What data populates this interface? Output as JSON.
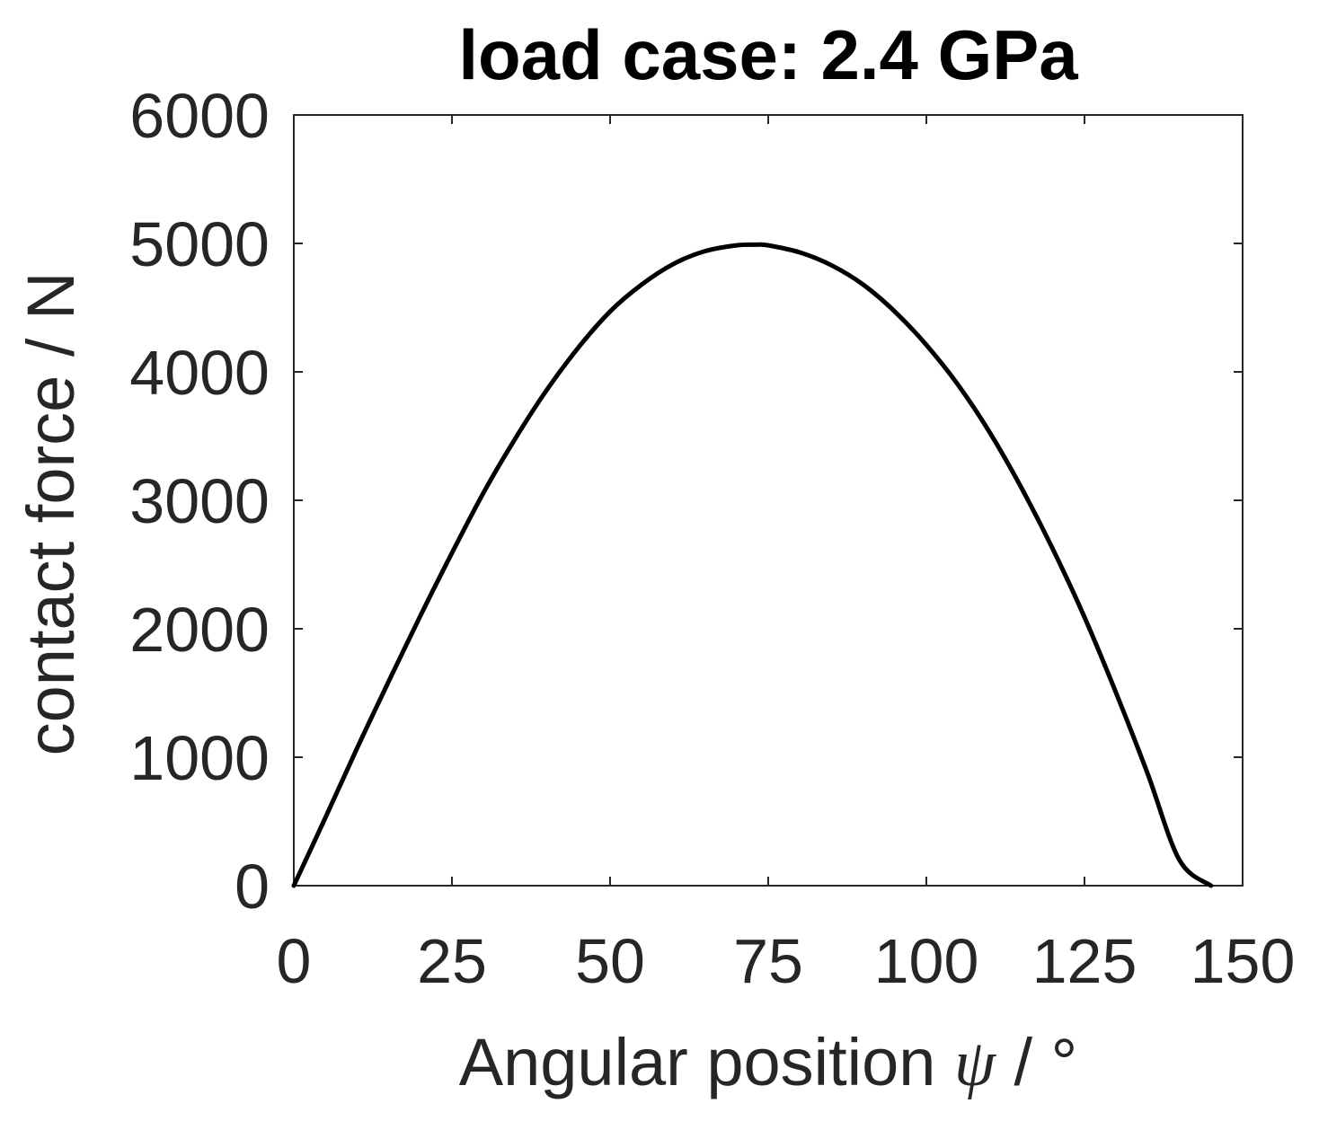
{
  "chart_data": {
    "type": "line",
    "title": "load case: 2.4 GPa",
    "xlabel_prefix": "Angular position ",
    "xlabel_symbol": "ψ",
    "xlabel_suffix": " / °",
    "ylabel": "contact force / N",
    "xlim": [
      0,
      150
    ],
    "ylim": [
      0,
      6000
    ],
    "xticks": [
      0,
      25,
      50,
      75,
      100,
      125,
      150
    ],
    "yticks": [
      0,
      1000,
      2000,
      3000,
      4000,
      5000,
      6000
    ],
    "grid": false,
    "legend": "none",
    "line_color": "#000000",
    "series": [
      {
        "x": [
          0,
          5,
          10,
          15,
          20,
          25,
          30,
          35,
          40,
          45,
          50,
          55,
          60,
          65,
          70,
          73,
          75,
          80,
          85,
          90,
          95,
          100,
          105,
          110,
          115,
          120,
          125,
          130,
          135,
          140,
          145
        ],
        "values": [
          0,
          530,
          1070,
          1590,
          2100,
          2590,
          3060,
          3480,
          3860,
          4190,
          4470,
          4680,
          4840,
          4940,
          4985,
          4990,
          4985,
          4930,
          4830,
          4680,
          4470,
          4210,
          3900,
          3530,
          3100,
          2620,
          2090,
          1500,
          870,
          200,
          0
        ]
      }
    ]
  }
}
